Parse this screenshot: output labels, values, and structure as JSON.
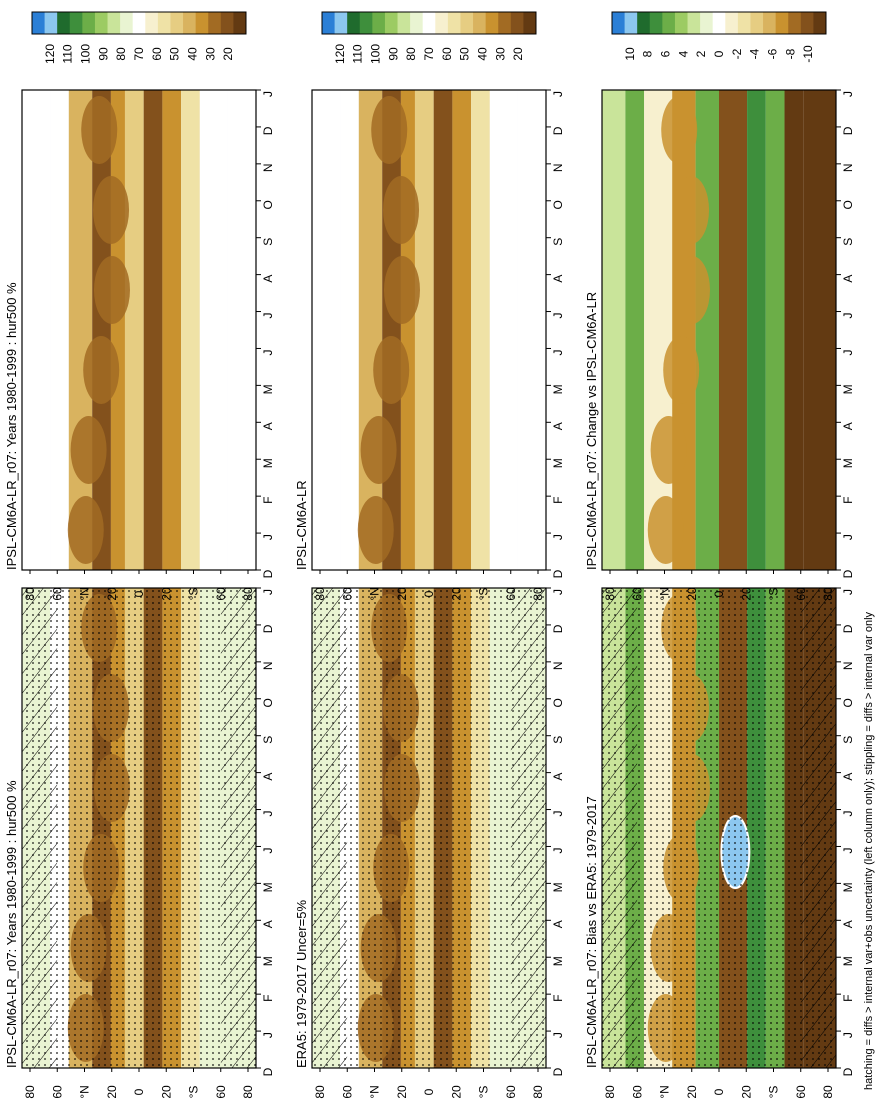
{
  "footnote": "hatching = diffs > internal var+obs uncertainty (left column only); stippling = diffs > internal var only",
  "colors": {
    "hur_scale": [
      "#2b7fd6",
      "#8cc7ef",
      "#1f6b2d",
      "#3e8f3c",
      "#6cae48",
      "#9ccb63",
      "#c9e49a",
      "#e9f4d2",
      "#ffffff",
      "#f7f0cf",
      "#efe2a6",
      "#e6cd82",
      "#d9b35f",
      "#c9922f",
      "#a26b23",
      "#83511c",
      "#633a12"
    ],
    "diff_scale": [
      "#2b7fd6",
      "#8cc7ef",
      "#1f6b2d",
      "#3e8f3c",
      "#6cae48",
      "#9ccb63",
      "#c9e49a",
      "#e9f4d2",
      "#ffffff",
      "#f7f0cf",
      "#efe2a6",
      "#e6cd82",
      "#d9b35f",
      "#c9922f",
      "#a26b23",
      "#83511c",
      "#633a12"
    ]
  },
  "chart_data": [
    {
      "type": "heatmap",
      "panel": "top-left",
      "title": "IPSL-CM6A-LR_r07: Years 1980-1999 : hur500 %",
      "xlabel": "",
      "ylabel": "",
      "x_ticks": [
        "D",
        "J",
        "F",
        "M",
        "A",
        "M",
        "J",
        "J",
        "A",
        "S",
        "O",
        "N",
        "D",
        "J"
      ],
      "y_ticks": [
        "80",
        "60",
        "°N",
        "20",
        "0",
        "20",
        "°S",
        "60",
        "80"
      ],
      "colorbar": [
        "120",
        "110",
        "100",
        "90",
        "80",
        "70",
        "60",
        "50",
        "40",
        "30",
        "20"
      ],
      "hatching": true,
      "stippling": true
    },
    {
      "type": "heatmap",
      "panel": "top-right",
      "title": "IPSL-CM6A-LR_r07: Years 1980-1999 : hur500 %",
      "xlabel": "",
      "ylabel": "",
      "x_ticks": [
        "D",
        "J",
        "F",
        "M",
        "A",
        "M",
        "J",
        "J",
        "A",
        "S",
        "O",
        "N",
        "D",
        "J"
      ],
      "y_ticks": [
        "80",
        "60",
        "°N",
        "20",
        "0",
        "20",
        "°S",
        "60",
        "80"
      ],
      "colorbar": [
        "120",
        "110",
        "100",
        "90",
        "80",
        "70",
        "60",
        "50",
        "40",
        "30",
        "20"
      ],
      "hatching": false,
      "stippling": false
    },
    {
      "type": "heatmap",
      "panel": "middle-left",
      "title": "ERA5: 1979-2017 Uncer=5%",
      "xlabel": "",
      "ylabel": "",
      "x_ticks": [
        "D",
        "J",
        "F",
        "M",
        "A",
        "M",
        "J",
        "J",
        "A",
        "S",
        "O",
        "N",
        "D",
        "J"
      ],
      "y_ticks": [
        "80",
        "60",
        "°N",
        "20",
        "0",
        "20",
        "°S",
        "60",
        "80"
      ],
      "colorbar": [
        "120",
        "110",
        "100",
        "90",
        "80",
        "70",
        "60",
        "50",
        "40",
        "30",
        "20"
      ],
      "hatching": true,
      "stippling": true
    },
    {
      "type": "heatmap",
      "panel": "middle-right",
      "title": "IPSL-CM6A-LR",
      "xlabel": "",
      "ylabel": "",
      "x_ticks": [
        "D",
        "J",
        "F",
        "M",
        "A",
        "M",
        "J",
        "J",
        "A",
        "S",
        "O",
        "N",
        "D",
        "J"
      ],
      "y_ticks": [
        "80",
        "60",
        "°N",
        "20",
        "0",
        "20",
        "°S",
        "60",
        "80"
      ],
      "colorbar": [
        "120",
        "110",
        "100",
        "90",
        "80",
        "70",
        "60",
        "50",
        "40",
        "30",
        "20"
      ],
      "hatching": false,
      "stippling": false
    },
    {
      "type": "heatmap",
      "panel": "bottom-left",
      "title": "IPSL-CM6A-LR_r07: Bias vs ERA5: 1979-2017",
      "xlabel": "",
      "ylabel": "",
      "x_ticks": [
        "D",
        "J",
        "F",
        "M",
        "A",
        "M",
        "J",
        "J",
        "A",
        "S",
        "O",
        "N",
        "D",
        "J"
      ],
      "y_ticks": [
        "80",
        "60",
        "°N",
        "20",
        "0",
        "20",
        "°S",
        "60",
        "80"
      ],
      "colorbar": [
        "10",
        "8",
        "6",
        "4",
        "2",
        "0",
        "-2",
        "-4",
        "-6",
        "-8",
        "-10"
      ],
      "hatching": true,
      "stippling": true
    },
    {
      "type": "heatmap",
      "panel": "bottom-right",
      "title": "IPSL-CM6A-LR_r07: Change vs IPSL-CM6A-LR",
      "xlabel": "",
      "ylabel": "",
      "x_ticks": [
        "D",
        "J",
        "F",
        "M",
        "A",
        "M",
        "J",
        "J",
        "A",
        "S",
        "O",
        "N",
        "D",
        "J"
      ],
      "y_ticks": [
        "80",
        "60",
        "°N",
        "20",
        "0",
        "20",
        "°S",
        "60",
        "80"
      ],
      "colorbar": [
        "10",
        "8",
        "6",
        "4",
        "2",
        "0",
        "-2",
        "-4",
        "-6",
        "-8",
        "-10"
      ],
      "hatching": false,
      "stippling": false
    }
  ]
}
